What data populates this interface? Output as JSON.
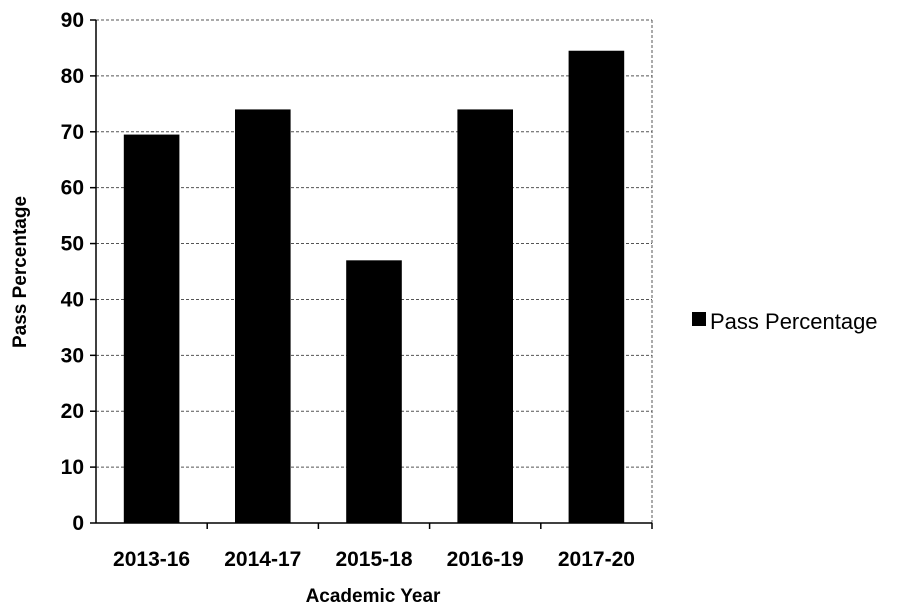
{
  "chart_data": {
    "type": "bar",
    "categories": [
      "2013-16",
      "2014-17",
      "2015-18",
      "2016-19",
      "2017-20"
    ],
    "series": [
      {
        "name": "Pass Percentage",
        "values": [
          69.5,
          74,
          47,
          74,
          84.5
        ],
        "color": "#000000"
      }
    ],
    "xlabel": "Academic Year",
    "ylabel": "Pass Percentage",
    "ylim": [
      0,
      90
    ],
    "yticks": [
      0,
      10,
      20,
      30,
      40,
      50,
      60,
      70,
      80,
      90
    ],
    "grid": true,
    "legend": {
      "position": "right"
    }
  }
}
